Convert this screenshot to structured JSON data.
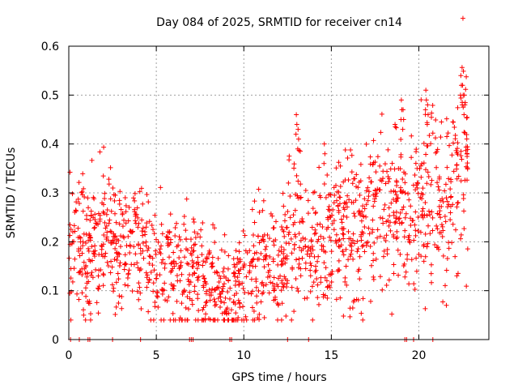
{
  "chart_data": {
    "type": "scatter",
    "title": "Day 084 of 2025, SRMTID for receiver cn14",
    "xlabel": "GPS time / hours",
    "ylabel": "SRMTID / TECUs",
    "xlim": [
      0,
      24
    ],
    "ylim": [
      0,
      0.6
    ],
    "x_ticks": [
      0,
      5,
      10,
      15,
      20
    ],
    "x_tick_labels": [
      "0",
      "5",
      "10",
      "15",
      "20"
    ],
    "y_ticks": [
      0,
      0.1,
      0.2,
      0.3,
      0.4,
      0.5,
      0.6
    ],
    "y_tick_labels": [
      "0",
      "0.1",
      "0.2",
      "0.3",
      "0.4",
      "0.5",
      "0.6"
    ],
    "grid": true,
    "marker": "+",
    "series_color": "#ff0000",
    "trend": [
      [
        0.0,
        0.18
      ],
      [
        0.5,
        0.19
      ],
      [
        1.0,
        0.2
      ],
      [
        1.5,
        0.21
      ],
      [
        2.0,
        0.22
      ],
      [
        2.5,
        0.2
      ],
      [
        3.0,
        0.19
      ],
      [
        3.5,
        0.19
      ],
      [
        4.0,
        0.18
      ],
      [
        4.5,
        0.18
      ],
      [
        5.0,
        0.17
      ],
      [
        5.5,
        0.16
      ],
      [
        6.0,
        0.15
      ],
      [
        6.5,
        0.14
      ],
      [
        7.0,
        0.13
      ],
      [
        7.5,
        0.13
      ],
      [
        8.0,
        0.12
      ],
      [
        8.5,
        0.1
      ],
      [
        9.0,
        0.09
      ],
      [
        9.5,
        0.09
      ],
      [
        10.0,
        0.12
      ],
      [
        10.5,
        0.15
      ],
      [
        11.0,
        0.16
      ],
      [
        11.5,
        0.15
      ],
      [
        12.0,
        0.13
      ],
      [
        12.5,
        0.19
      ],
      [
        13.0,
        0.24
      ],
      [
        13.5,
        0.21
      ],
      [
        14.0,
        0.2
      ],
      [
        14.5,
        0.19
      ],
      [
        15.0,
        0.22
      ],
      [
        15.5,
        0.23
      ],
      [
        16.0,
        0.23
      ],
      [
        16.5,
        0.22
      ],
      [
        17.0,
        0.23
      ],
      [
        17.5,
        0.26
      ],
      [
        18.0,
        0.26
      ],
      [
        18.5,
        0.27
      ],
      [
        19.0,
        0.26
      ],
      [
        19.5,
        0.25
      ],
      [
        20.0,
        0.26
      ],
      [
        20.5,
        0.3
      ],
      [
        21.0,
        0.33
      ],
      [
        21.5,
        0.27
      ],
      [
        22.0,
        0.3
      ],
      [
        22.5,
        0.38
      ],
      [
        22.8,
        0.4
      ]
    ],
    "spikes": [
      [
        13.0,
        0.46
      ],
      [
        13.1,
        0.43
      ],
      [
        14.6,
        0.4
      ],
      [
        19.0,
        0.49
      ],
      [
        19.1,
        0.47
      ],
      [
        20.4,
        0.51
      ],
      [
        20.5,
        0.48
      ],
      [
        22.4,
        0.54
      ],
      [
        22.5,
        0.52
      ],
      [
        22.6,
        0.5
      ]
    ],
    "zero_points": [
      0.1,
      0.6,
      1.1,
      1.2,
      2.5,
      4.1,
      6.9,
      7.0,
      7.1,
      9.2,
      9.3,
      12.5,
      13.7,
      19.2,
      19.3,
      19.7,
      20.8
    ]
  }
}
